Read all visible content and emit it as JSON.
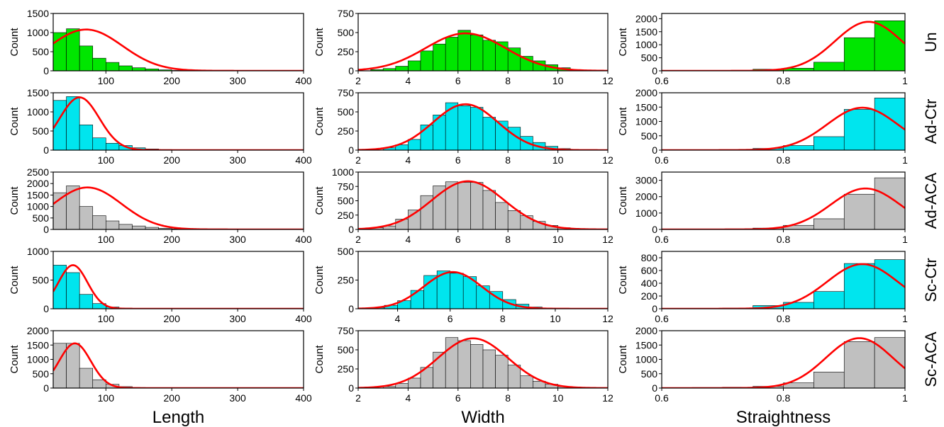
{
  "colors": {
    "Un": "#00e600",
    "Ad-Ctr": "#00e5ee",
    "Ad-ACA": "#c0c0c0",
    "Sc-Ctr": "#00e5ee",
    "Sc-ACA": "#c0c0c0",
    "fit": "#ff0000"
  },
  "figure": {
    "rows": [
      "Un",
      "Ad-Ctr",
      "Ad-ACA",
      "Sc-Ctr",
      "Sc-ACA"
    ],
    "column_xlabels": [
      "Length",
      "Width",
      "Straightness"
    ],
    "ylabel": "Count"
  },
  "chart_data": [
    {
      "type": "bar",
      "row": "Un",
      "column": "Length",
      "bin_edges": [
        20,
        40,
        60,
        80,
        100,
        120,
        140,
        160,
        180,
        200,
        220,
        240,
        260,
        280,
        300,
        320
      ],
      "values": [
        1000,
        1100,
        650,
        330,
        220,
        130,
        80,
        50,
        25,
        10,
        5,
        3,
        2,
        1,
        1
      ],
      "fit": {
        "mean": 70,
        "sd": 55,
        "peak": 1080
      },
      "xlim": [
        20,
        400
      ],
      "ylim": [
        0,
        1500
      ],
      "xticks": [
        100,
        200,
        300,
        400
      ],
      "yticks": [
        0,
        500,
        1000,
        1500
      ]
    },
    {
      "type": "bar",
      "row": "Un",
      "column": "Width",
      "bin_edges": [
        2.5,
        3,
        3.5,
        4,
        4.5,
        5,
        5.5,
        6,
        6.5,
        7,
        7.5,
        8,
        8.5,
        9,
        9.5,
        10,
        10.5,
        11
      ],
      "values": [
        15,
        30,
        60,
        130,
        260,
        350,
        440,
        530,
        470,
        400,
        380,
        300,
        190,
        130,
        80,
        40,
        15
      ],
      "fit": {
        "mean": 6.3,
        "sd": 1.6,
        "peak": 490
      },
      "xlim": [
        2,
        12
      ],
      "ylim": [
        0,
        750
      ],
      "xticks": [
        2,
        4,
        6,
        8,
        10,
        12
      ],
      "yticks": [
        0,
        250,
        500,
        750
      ]
    },
    {
      "type": "bar",
      "row": "Un",
      "column": "Straightness",
      "bin_edges": [
        0.65,
        0.7,
        0.75,
        0.8,
        0.85,
        0.9,
        0.95,
        1.0
      ],
      "values": [
        5,
        10,
        60,
        100,
        330,
        1270,
        1920
      ],
      "fit": {
        "mean": 0.94,
        "sd": 0.055,
        "peak": 1880
      },
      "xlim": [
        0.6,
        1.0
      ],
      "ylim": [
        0,
        2200
      ],
      "xticks": [
        0.6,
        0.8,
        1.0
      ],
      "yticks": [
        0,
        500,
        1000,
        1500,
        2000
      ]
    },
    {
      "type": "bar",
      "row": "Ad-Ctr",
      "column": "Length",
      "bin_edges": [
        20,
        40,
        60,
        80,
        100,
        120,
        140,
        160,
        180,
        200,
        220,
        240,
        260
      ],
      "values": [
        1300,
        1400,
        660,
        320,
        180,
        120,
        60,
        30,
        15,
        5,
        2,
        1
      ],
      "fit": {
        "mean": 60,
        "sd": 30,
        "peak": 1380
      },
      "xlim": [
        20,
        400
      ],
      "ylim": [
        0,
        1500
      ],
      "xticks": [
        100,
        200,
        300,
        400
      ],
      "yticks": [
        0,
        500,
        1000,
        1500
      ]
    },
    {
      "type": "bar",
      "row": "Ad-Ctr",
      "column": "Width",
      "bin_edges": [
        3,
        3.5,
        4,
        4.5,
        5,
        5.5,
        6,
        6.5,
        7,
        7.5,
        8,
        8.5,
        9,
        9.5,
        10,
        10.5
      ],
      "values": [
        30,
        70,
        140,
        330,
        460,
        620,
        580,
        560,
        430,
        380,
        300,
        180,
        100,
        50,
        20
      ],
      "fit": {
        "mean": 6.3,
        "sd": 1.3,
        "peak": 600
      },
      "xlim": [
        2,
        12
      ],
      "ylim": [
        0,
        750
      ],
      "xticks": [
        2,
        4,
        6,
        8,
        10,
        12
      ],
      "yticks": [
        0,
        250,
        500,
        750
      ]
    },
    {
      "type": "bar",
      "row": "Ad-Ctr",
      "column": "Straightness",
      "bin_edges": [
        0.65,
        0.7,
        0.75,
        0.8,
        0.85,
        0.9,
        0.95,
        1.0
      ],
      "values": [
        5,
        10,
        60,
        160,
        470,
        1420,
        1820
      ],
      "fit": {
        "mean": 0.93,
        "sd": 0.058,
        "peak": 1480
      },
      "xlim": [
        0.6,
        1.0
      ],
      "ylim": [
        0,
        2000
      ],
      "xticks": [
        0.6,
        0.8,
        1.0
      ],
      "yticks": [
        0,
        500,
        1000,
        1500,
        2000
      ]
    },
    {
      "type": "bar",
      "row": "Ad-ACA",
      "column": "Length",
      "bin_edges": [
        20,
        40,
        60,
        80,
        100,
        120,
        140,
        160,
        180,
        200,
        220,
        240,
        260
      ],
      "values": [
        1600,
        1900,
        1000,
        600,
        370,
        220,
        150,
        90,
        50,
        20,
        10,
        5
      ],
      "fit": {
        "mean": 72,
        "sd": 52,
        "peak": 1830
      },
      "xlim": [
        20,
        400
      ],
      "ylim": [
        0,
        2500
      ],
      "xticks": [
        100,
        200,
        300,
        400
      ],
      "yticks": [
        0,
        500,
        1000,
        1500,
        2000,
        2500
      ]
    },
    {
      "type": "bar",
      "row": "Ad-ACA",
      "column": "Width",
      "bin_edges": [
        2.5,
        3,
        3.5,
        4,
        4.5,
        5,
        5.5,
        6,
        6.5,
        7,
        7.5,
        8,
        8.5,
        9,
        9.5,
        10,
        10.5,
        11
      ],
      "values": [
        30,
        60,
        180,
        340,
        590,
        760,
        830,
        820,
        820,
        680,
        470,
        330,
        240,
        140,
        70,
        30,
        10
      ],
      "fit": {
        "mean": 6.4,
        "sd": 1.45,
        "peak": 840
      },
      "xlim": [
        2,
        12
      ],
      "ylim": [
        0,
        1000
      ],
      "xticks": [
        2,
        4,
        6,
        8,
        10,
        12
      ],
      "yticks": [
        0,
        250,
        500,
        750,
        1000
      ]
    },
    {
      "type": "bar",
      "row": "Ad-ACA",
      "column": "Straightness",
      "bin_edges": [
        0.65,
        0.7,
        0.75,
        0.8,
        0.85,
        0.9,
        0.95,
        1.0
      ],
      "values": [
        10,
        20,
        80,
        250,
        650,
        2150,
        3150
      ],
      "fit": {
        "mean": 0.935,
        "sd": 0.057,
        "peak": 2500
      },
      "xlim": [
        0.6,
        1.0
      ],
      "ylim": [
        0,
        3500
      ],
      "xticks": [
        0.6,
        0.8,
        1.0
      ],
      "yticks": [
        0,
        1000,
        2000,
        3000
      ]
    },
    {
      "type": "bar",
      "row": "Sc-Ctr",
      "column": "Length",
      "bin_edges": [
        20,
        40,
        60,
        80,
        100,
        120,
        140,
        160
      ],
      "values": [
        760,
        630,
        250,
        90,
        30,
        10,
        3
      ],
      "fit": {
        "mean": 50,
        "sd": 22,
        "peak": 760
      },
      "xlim": [
        20,
        400
      ],
      "ylim": [
        0,
        1000
      ],
      "xticks": [
        100,
        200,
        300,
        400
      ],
      "yticks": [
        0,
        500,
        1000
      ]
    },
    {
      "type": "bar",
      "row": "Sc-Ctr",
      "column": "Width",
      "bin_edges": [
        3,
        3.5,
        4,
        4.5,
        5,
        5.5,
        6,
        6.5,
        7,
        7.5,
        8,
        8.5,
        9,
        9.5,
        10
      ],
      "values": [
        10,
        30,
        70,
        160,
        290,
        330,
        310,
        280,
        200,
        150,
        80,
        40,
        15,
        5
      ],
      "fit": {
        "mean": 6.1,
        "sd": 1.1,
        "peak": 320
      },
      "xlim": [
        2.5,
        12
      ],
      "ylim": [
        0,
        500
      ],
      "xticks": [
        4,
        6,
        8,
        10,
        12
      ],
      "yticks": [
        0,
        250,
        500
      ]
    },
    {
      "type": "bar",
      "row": "Sc-Ctr",
      "column": "Straightness",
      "bin_edges": [
        0.65,
        0.7,
        0.75,
        0.8,
        0.85,
        0.9,
        0.95,
        1.0
      ],
      "values": [
        5,
        10,
        50,
        100,
        270,
        710,
        770
      ],
      "fit": {
        "mean": 0.93,
        "sd": 0.058,
        "peak": 700
      },
      "xlim": [
        0.6,
        1.0
      ],
      "ylim": [
        0,
        900
      ],
      "xticks": [
        0.6,
        0.8,
        1.0
      ],
      "yticks": [
        0,
        200,
        400,
        600,
        800
      ]
    },
    {
      "type": "bar",
      "row": "Sc-ACA",
      "column": "Length",
      "bin_edges": [
        20,
        40,
        60,
        80,
        100,
        120,
        140,
        160,
        180
      ],
      "values": [
        1560,
        1560,
        690,
        290,
        130,
        50,
        20,
        5
      ],
      "fit": {
        "mean": 53,
        "sd": 24,
        "peak": 1560
      },
      "xlim": [
        20,
        400
      ],
      "ylim": [
        0,
        2000
      ],
      "xticks": [
        100,
        200,
        300,
        400
      ],
      "yticks": [
        0,
        500,
        1000,
        1500,
        2000
      ]
    },
    {
      "type": "bar",
      "row": "Sc-ACA",
      "column": "Width",
      "bin_edges": [
        3,
        3.5,
        4,
        4.5,
        5,
        5.5,
        6,
        6.5,
        7,
        7.5,
        8,
        8.5,
        9,
        9.5,
        10,
        10.5
      ],
      "values": [
        20,
        60,
        130,
        270,
        470,
        660,
        620,
        570,
        500,
        430,
        300,
        160,
        90,
        50,
        20
      ],
      "fit": {
        "mean": 6.6,
        "sd": 1.4,
        "peak": 650
      },
      "xlim": [
        2,
        12
      ],
      "ylim": [
        0,
        750
      ],
      "xticks": [
        2,
        4,
        6,
        8,
        10,
        12
      ],
      "yticks": [
        0,
        250,
        500,
        750
      ]
    },
    {
      "type": "bar",
      "row": "Sc-ACA",
      "column": "Straightness",
      "bin_edges": [
        0.6,
        0.65,
        0.7,
        0.75,
        0.8,
        0.85,
        0.9,
        0.95,
        1.0
      ],
      "values": [
        10,
        20,
        30,
        60,
        180,
        560,
        1620,
        1760
      ],
      "fit": {
        "mean": 0.925,
        "sd": 0.055,
        "peak": 1740
      },
      "xlim": [
        0.6,
        1.0
      ],
      "ylim": [
        0,
        2000
      ],
      "xticks": [
        0.6,
        0.8,
        1.0
      ],
      "yticks": [
        0,
        500,
        1000,
        1500,
        2000
      ]
    }
  ]
}
